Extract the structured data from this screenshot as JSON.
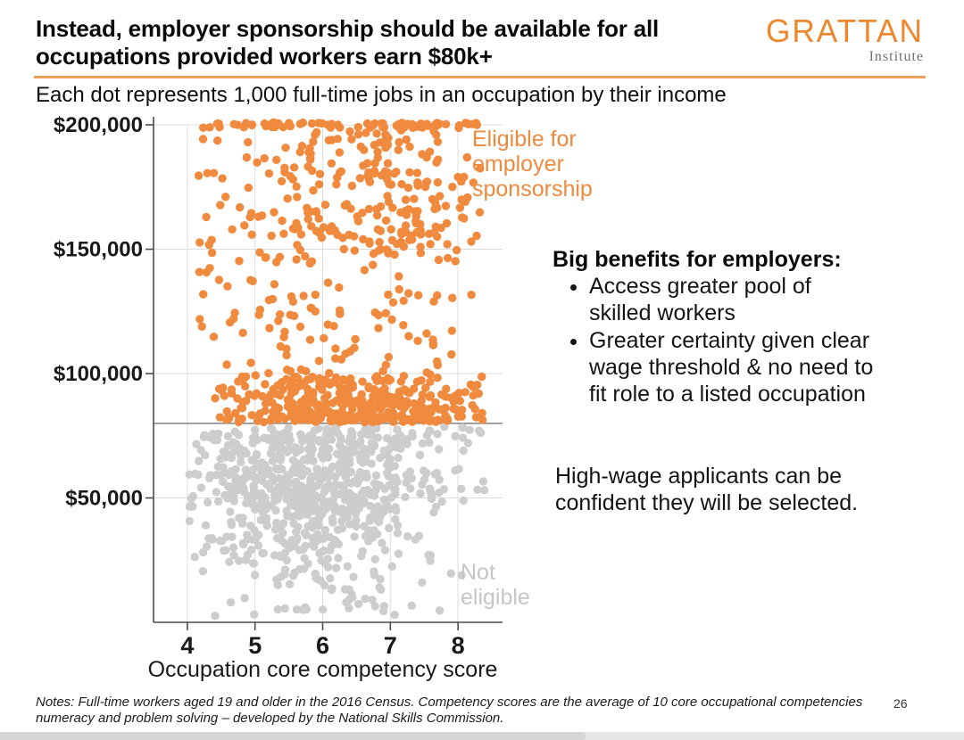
{
  "header": {
    "title": "Instead, employer sponsorship should be available for all\noccupations provided workers earn $80k+",
    "subtitle": "Each dot represents 1,000 full-time jobs in an occupation by their income",
    "logo": {
      "word": "GRATTAN",
      "sub": "Institute"
    }
  },
  "chart_data": {
    "type": "scatter",
    "xlabel": "Occupation core competency score",
    "ylabel": "",
    "xlim": [
      3.5,
      8.658
    ],
    "ylim": [
      0,
      203600
    ],
    "grid": true,
    "x_ticks": [
      {
        "v": 4,
        "label": "4"
      },
      {
        "v": 5,
        "label": "5"
      },
      {
        "v": 6,
        "label": "6"
      },
      {
        "v": 7,
        "label": "7"
      },
      {
        "v": 8,
        "label": "8"
      }
    ],
    "y_ticks": [
      {
        "v": 200000,
        "label": "$200,000"
      },
      {
        "v": 150000,
        "label": "$150,000"
      },
      {
        "v": 100000,
        "label": "$100,000"
      },
      {
        "v": 50000,
        "label": "$50,000"
      }
    ],
    "threshold": {
      "value": 80000,
      "color": "#8C8C8C"
    },
    "point_radius": 4.7,
    "seed": 7,
    "colors": {
      "eligible": "#EF8A3E",
      "not_eligible": "#CDCDCD",
      "grid": "#DBDBDB",
      "axis": "#4C4C4C"
    },
    "series": [
      {
        "name": "Not eligible",
        "color": "#CDCDCD",
        "clusters": [
          {
            "count": 540,
            "x": {
              "dist": "normal",
              "mean": 5.85,
              "sd": 0.92,
              "min": 4.02,
              "max": 8.4
            },
            "y": {
              "dist": "normal",
              "mean": 54000,
              "sd": 12500,
              "min": 18000,
              "max": 78800
            }
          },
          {
            "count": 115,
            "x": {
              "dist": "normal",
              "mean": 6.3,
              "sd": 1.05,
              "min": 4.2,
              "max": 8.35
            },
            "y": {
              "dist": "uniform",
              "min": 69000,
              "max": 78800
            }
          },
          {
            "count": 95,
            "x": {
              "dist": "normal",
              "mean": 5.9,
              "sd": 1.0,
              "min": 4.1,
              "max": 8.25
            },
            "y": {
              "dist": "uniform",
              "min": 4000,
              "max": 36000,
              "pow": 0.77
            }
          },
          {
            "count": 15,
            "x": {
              "dist": "uniform",
              "min": 4.4,
              "max": 7.8
            },
            "y": {
              "dist": "uniform",
              "min": 2500,
              "max": 10000
            }
          }
        ]
      },
      {
        "name": "Eligible for employer sponsorship",
        "color": "#EF8A3E",
        "clusters": [
          {
            "count": 72,
            "x": {
              "dist": "uniform",
              "min": 4.2,
              "max": 8.3,
              "pow": 0.8
            },
            "y": {
              "dist": "uniform",
              "min": 198800,
              "max": 201000
            }
          },
          {
            "count": 150,
            "x": {
              "dist": "normal",
              "mean": 7.0,
              "sd": 0.85,
              "min": 4.6,
              "max": 8.45
            },
            "y": {
              "dist": "uniform",
              "min": 148000,
              "max": 198000
            }
          },
          {
            "count": 85,
            "x": {
              "dist": "uniform",
              "min": 4.15,
              "max": 5.9
            },
            "y": {
              "dist": "uniform",
              "min": 83000,
              "max": 199000
            }
          },
          {
            "count": 230,
            "x": {
              "dist": "normal",
              "mean": 6.6,
              "sd": 0.85,
              "min": 4.3,
              "max": 8.45
            },
            "y": {
              "dist": "uniform",
              "min": 81000,
              "max": 199000,
              "pow": 2.0
            }
          },
          {
            "count": 280,
            "x": {
              "dist": "normal",
              "mean": 6.35,
              "sd": 0.95,
              "min": 4.45,
              "max": 8.4
            },
            "y": {
              "dist": "uniform",
              "min": 80500,
              "max": 99000,
              "pow": 1.4
            }
          }
        ]
      }
    ],
    "annotations": {
      "eligible": "Eligible for\nemployer\nsponsorship",
      "not_eligible": "Not\neligible"
    }
  },
  "benefits": {
    "heading": "Big benefits for employers:",
    "items": [
      "Access greater pool of\nskilled workers",
      "Greater certainty given clear\nwage threshold & no need to\nfit role to a listed occupation"
    ]
  },
  "highwage_note": "High-wage applicants can be\nconfident they will be selected.",
  "footer": {
    "notes": "Notes: Full-time workers aged 19 and older in the 2016 Census. Competency scores are the average of 10 core occupational competencies\nnumeracy and problem solving – developed by the National Skills Commission.",
    "page_number": "26"
  }
}
